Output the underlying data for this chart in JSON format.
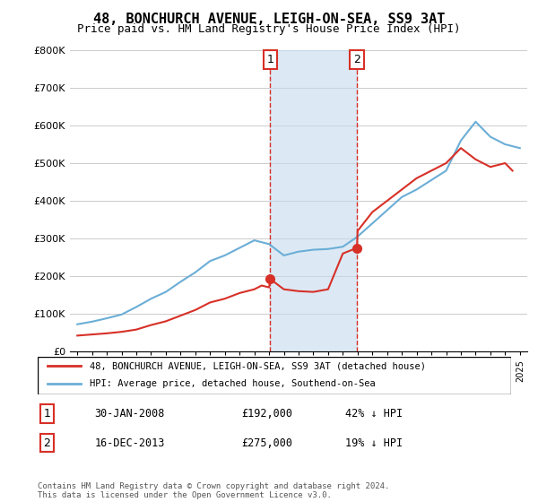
{
  "title": "48, BONCHURCH AVENUE, LEIGH-ON-SEA, SS9 3AT",
  "subtitle": "Price paid vs. HM Land Registry's House Price Index (HPI)",
  "legend_line1": "48, BONCHURCH AVENUE, LEIGH-ON-SEA, SS9 3AT (detached house)",
  "legend_line2": "HPI: Average price, detached house, Southend-on-Sea",
  "transaction1_label": "1",
  "transaction1_date": "30-JAN-2008",
  "transaction1_price": "£192,000",
  "transaction1_note": "42% ↓ HPI",
  "transaction2_label": "2",
  "transaction2_date": "16-DEC-2013",
  "transaction2_price": "£275,000",
  "transaction2_note": "19% ↓ HPI",
  "footer": "Contains HM Land Registry data © Crown copyright and database right 2024.\nThis data is licensed under the Open Government Licence v3.0.",
  "hpi_color": "#6baed6",
  "price_color": "#d73027",
  "shade_color": "#c6dbef",
  "vline_color": "#d73027",
  "marker1_color": "#d73027",
  "marker2_color": "#d73027",
  "xlim": [
    1995,
    2025
  ],
  "ylim": [
    0,
    800000
  ],
  "yticks": [
    0,
    100000,
    200000,
    300000,
    400000,
    500000,
    600000,
    700000,
    800000
  ],
  "ytick_labels": [
    "£0",
    "£100K",
    "£200K",
    "£300K",
    "£400K",
    "£500K",
    "£600K",
    "£700K",
    "£800K"
  ],
  "xticks": [
    1995,
    1996,
    1997,
    1998,
    1999,
    2000,
    2001,
    2002,
    2003,
    2004,
    2005,
    2006,
    2007,
    2008,
    2009,
    2010,
    2011,
    2012,
    2013,
    2014,
    2015,
    2016,
    2017,
    2018,
    2019,
    2020,
    2021,
    2022,
    2023,
    2024,
    2025
  ],
  "transaction1_x": 2008.08,
  "transaction2_x": 2013.96,
  "hpi_years": [
    1995,
    1996,
    1997,
    1998,
    1999,
    2000,
    2001,
    2002,
    2003,
    2004,
    2005,
    2006,
    2007,
    2008,
    2009,
    2010,
    2011,
    2012,
    2013,
    2014,
    2015,
    2016,
    2017,
    2018,
    2019,
    2020,
    2021,
    2022,
    2023,
    2024,
    2025
  ],
  "hpi_values": [
    72000,
    79000,
    88000,
    98000,
    118000,
    140000,
    158000,
    185000,
    210000,
    240000,
    255000,
    275000,
    295000,
    285000,
    255000,
    265000,
    270000,
    272000,
    278000,
    305000,
    340000,
    375000,
    410000,
    430000,
    455000,
    480000,
    560000,
    610000,
    570000,
    550000,
    540000
  ],
  "price_years": [
    1995,
    1996,
    1997,
    1998,
    1999,
    2000,
    2001,
    2002,
    2003,
    2004,
    2005,
    2006,
    2007,
    2007.5,
    2008,
    2008.08,
    2009,
    2010,
    2011,
    2012,
    2013,
    2013.96,
    2014,
    2015,
    2016,
    2017,
    2018,
    2019,
    2020,
    2021,
    2022,
    2023,
    2024,
    2024.5
  ],
  "price_values": [
    42000,
    45000,
    48000,
    52000,
    58000,
    70000,
    80000,
    95000,
    110000,
    130000,
    140000,
    155000,
    165000,
    175000,
    170000,
    192000,
    165000,
    160000,
    158000,
    165000,
    260000,
    275000,
    320000,
    370000,
    400000,
    430000,
    460000,
    480000,
    500000,
    540000,
    510000,
    490000,
    500000,
    480000
  ]
}
